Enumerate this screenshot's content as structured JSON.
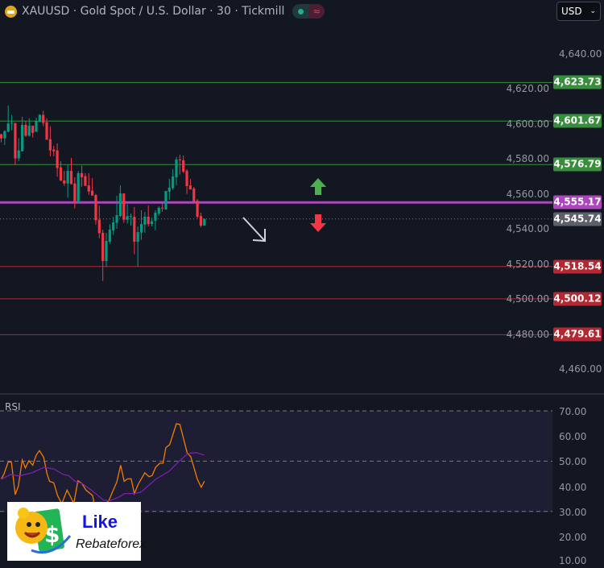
{
  "header": {
    "title": "XAUUSD · Gold Spot / U.S. Dollar · 30 · Tickmill",
    "icon": "gold-bars-icon",
    "status_icons": [
      "market-open-dot-icon",
      "delay-wave-icon"
    ]
  },
  "currency": {
    "label": "USD",
    "icon": "chevron-down-icon"
  },
  "colors": {
    "background": "#131722",
    "up": "#089981",
    "down": "#f23645",
    "resistance": "#388e3c",
    "support": "#b22833",
    "pivot": "#ab47bc",
    "last": "#5d606b",
    "rsi": "#f57c00",
    "rsi_ma": "#7e1fae"
  },
  "price_axis": {
    "ticks": [
      "4,640.00",
      "4,620.00",
      "4,600.00",
      "4,580.00",
      "4,560.00",
      "4,540.00",
      "4,520.00",
      "4,500.00",
      "4,480.00",
      "4,460.00"
    ]
  },
  "levels": [
    {
      "label": "4,623.73",
      "value": 4623.73,
      "type": "resistance"
    },
    {
      "label": "4,601.67",
      "value": 4601.67,
      "type": "resistance"
    },
    {
      "label": "4,576.79",
      "value": 4576.79,
      "type": "resistance"
    },
    {
      "label": "4,555.17",
      "value": 4555.17,
      "type": "pivot"
    },
    {
      "label": "4,545.74",
      "value": 4545.74,
      "type": "last"
    },
    {
      "label": "4,518.54",
      "value": 4518.54,
      "type": "support"
    },
    {
      "label": "4,500.12",
      "value": 4500.12,
      "type": "support"
    },
    {
      "label": "4,479.61",
      "value": 4479.61,
      "type": "support"
    }
  ],
  "annotations": {
    "up_arrow": "green-up-arrow-icon",
    "down_arrow": "red-down-arrow-icon",
    "trend_arrow": "diagonal-down-arrow-icon"
  },
  "rsi": {
    "label": "RSI",
    "ticks": [
      "70.00",
      "60.00",
      "50.00",
      "40.00",
      "30.00",
      "20.00",
      "10.00"
    ]
  },
  "logo": {
    "line1": "Like",
    "line2": "Rebateforex"
  },
  "chart_data": [
    {
      "type": "candlestick",
      "ylim": [
        4460,
        4640
      ],
      "ohlc": [
        [
          4594.1,
          4594.4,
          4589.5,
          4591.8
        ],
        [
          4591.8,
          4596.4,
          4588.0,
          4595.9
        ],
        [
          4595.6,
          4610.5,
          4595.2,
          4600.3
        ],
        [
          4600.3,
          4605.2,
          4596.4,
          4600.6
        ],
        [
          4600.6,
          4600.6,
          4576.5,
          4580.3
        ],
        [
          4580.3,
          4591.8,
          4578.8,
          4584.9
        ],
        [
          4584.4,
          4604.1,
          4584.4,
          4599.5
        ],
        [
          4599.5,
          4601.8,
          4592.6,
          4593.3
        ],
        [
          4593.3,
          4603.3,
          4592.9,
          4599.0
        ],
        [
          4599.0,
          4599.0,
          4592.3,
          4594.9
        ],
        [
          4595.5,
          4603.6,
          4595.5,
          4601.8
        ],
        [
          4601.3,
          4605.5,
          4601.0,
          4605.2
        ],
        [
          4605.2,
          4607.5,
          4598.7,
          4600.6
        ],
        [
          4601.0,
          4603.3,
          4591.0,
          4591.0
        ],
        [
          4591.3,
          4598.7,
          4581.5,
          4584.9
        ],
        [
          4585.4,
          4587.5,
          4581.5,
          4584.4
        ],
        [
          4584.9,
          4588.9,
          4569.9,
          4574.8
        ],
        [
          4575.2,
          4578.8,
          4567.6,
          4567.6
        ],
        [
          4567.7,
          4573.2,
          4564.6,
          4566.0
        ],
        [
          4566.0,
          4576.9,
          4557.9,
          4573.2
        ],
        [
          4573.2,
          4580.6,
          4565.6,
          4565.6
        ],
        [
          4566.0,
          4569.5,
          4551.7,
          4555.3
        ],
        [
          4555.3,
          4573.2,
          4555.3,
          4571.9
        ],
        [
          4571.9,
          4576.3,
          4564.2,
          4569.5
        ],
        [
          4570.2,
          4571.9,
          4564.6,
          4564.6
        ],
        [
          4564.9,
          4571.9,
          4559.6,
          4561.4
        ],
        [
          4561.9,
          4569.1,
          4559.1,
          4559.1
        ],
        [
          4559.4,
          4560.0,
          4542.5,
          4545.0
        ],
        [
          4545.3,
          4553.4,
          4534.7,
          4537.6
        ],
        [
          4537.8,
          4539.6,
          4510.3,
          4521.7
        ],
        [
          4521.7,
          4537.8,
          4518.3,
          4533.2
        ],
        [
          4532.7,
          4542.7,
          4531.5,
          4539.6
        ],
        [
          4539.2,
          4547.0,
          4536.6,
          4543.8
        ],
        [
          4543.5,
          4559.0,
          4540.1,
          4547.9
        ],
        [
          4547.4,
          4565.0,
          4546.8,
          4560.3
        ],
        [
          4560.3,
          4560.3,
          4543.5,
          4545.3
        ],
        [
          4545.3,
          4554.2,
          4543.1,
          4547.4
        ],
        [
          4547.0,
          4548.8,
          4541.9,
          4547.4
        ],
        [
          4547.0,
          4552.5,
          4525.5,
          4532.7
        ],
        [
          4532.7,
          4541.5,
          4518.6,
          4538.2
        ],
        [
          4537.9,
          4550.7,
          4533.8,
          4542.8
        ],
        [
          4542.5,
          4549.7,
          4537.9,
          4547.0
        ],
        [
          4547.0,
          4553.4,
          4541.5,
          4542.8
        ],
        [
          4542.8,
          4546.5,
          4541.5,
          4544.4
        ],
        [
          4544.7,
          4550.7,
          4539.3,
          4549.3
        ],
        [
          4548.8,
          4553.0,
          4547.6,
          4552.1
        ],
        [
          4552.2,
          4554.8,
          4549.9,
          4551.7
        ],
        [
          4551.1,
          4561.7,
          4551.1,
          4561.7
        ],
        [
          4561.3,
          4568.6,
          4556.8,
          4563.6
        ],
        [
          4563.3,
          4574.2,
          4562.3,
          4570.0
        ],
        [
          4569.5,
          4581.1,
          4565.0,
          4579.7
        ],
        [
          4579.7,
          4582.4,
          4571.1,
          4579.2
        ],
        [
          4579.2,
          4582.0,
          4571.9,
          4572.8
        ],
        [
          4573.2,
          4574.2,
          4560.0,
          4564.5
        ],
        [
          4564.9,
          4568.6,
          4562.6,
          4562.6
        ],
        [
          4563.1,
          4564.0,
          4555.7,
          4555.7
        ],
        [
          4556.2,
          4557.1,
          4546.1,
          4547.0
        ],
        [
          4547.4,
          4549.3,
          4541.0,
          4541.9
        ],
        [
          4541.9,
          4546.1,
          4541.9,
          4545.6
        ]
      ]
    },
    {
      "type": "line",
      "name": "RSI",
      "ylim": [
        10,
        70
      ],
      "bands": [
        30,
        50,
        70
      ],
      "series": [
        {
          "points": [
            [
              0,
              42.8
            ],
            [
              0.8,
              44.9
            ],
            [
              2.0,
              49.7
            ],
            [
              2.9,
              49.7
            ],
            [
              4.0,
              36.7
            ],
            [
              4.9,
              40.1
            ],
            [
              6.0,
              50.5
            ],
            [
              6.9,
              47.3
            ],
            [
              7.9,
              50.2
            ],
            [
              9.0,
              48.4
            ],
            [
              10.0,
              52.4
            ],
            [
              10.9,
              54.2
            ],
            [
              12.1,
              51.6
            ],
            [
              13.1,
              44.9
            ],
            [
              13.8,
              42.0
            ],
            [
              15.0,
              41.4
            ],
            [
              16.1,
              36.3
            ],
            [
              17.3,
              33.1
            ],
            [
              18.8,
              38.5
            ],
            [
              20.0,
              35.3
            ],
            [
              20.7,
              33.1
            ],
            [
              21.9,
              42.2
            ],
            [
              23.0,
              41.2
            ],
            [
              24.2,
              38.5
            ],
            [
              26.1,
              36.3
            ],
            [
              26.6,
              32.6
            ],
            [
              27.6,
              29.4
            ],
            [
              28.8,
              31.5
            ],
            [
              30.7,
              34.2
            ],
            [
              31.8,
              37.9
            ],
            [
              33.0,
              41.7
            ],
            [
              34.1,
              48.4
            ],
            [
              35.1,
              42.0
            ],
            [
              36.1,
              43.0
            ],
            [
              37.1,
              43.0
            ],
            [
              38.0,
              37.1
            ],
            [
              39.1,
              40.8
            ],
            [
              41.0,
              45.4
            ],
            [
              42.2,
              43.8
            ],
            [
              43.1,
              44.3
            ],
            [
              44.1,
              47.6
            ],
            [
              45.3,
              49.2
            ],
            [
              46.2,
              49.2
            ],
            [
              47.0,
              55.4
            ],
            [
              48.1,
              56.6
            ],
            [
              50.0,
              64.9
            ],
            [
              51.0,
              64.6
            ],
            [
              53.1,
              53.2
            ],
            [
              54.1,
              51.8
            ],
            [
              56.0,
              42.8
            ],
            [
              57.1,
              39.6
            ],
            [
              58.0,
              42.0
            ]
          ]
        },
        {
          "points": [
            [
              0,
              42.8
            ],
            [
              2.7,
              44.7
            ],
            [
              5.0,
              44.1
            ],
            [
              8.9,
              45.4
            ],
            [
              12.3,
              47.6
            ],
            [
              15.0,
              46.9
            ],
            [
              17.7,
              44.7
            ],
            [
              19.2,
              44.3
            ],
            [
              21.1,
              42.0
            ],
            [
              23.0,
              41.2
            ],
            [
              25.7,
              38.5
            ],
            [
              29.2,
              34.5
            ],
            [
              30.7,
              34.2
            ],
            [
              33.0,
              35.3
            ],
            [
              35.3,
              37.1
            ],
            [
              38.0,
              37.1
            ],
            [
              39.9,
              37.7
            ],
            [
              44.1,
              42.8
            ],
            [
              47.9,
              46.0
            ],
            [
              50.6,
              49.7
            ],
            [
              53.3,
              53.1
            ],
            [
              55.6,
              53.4
            ],
            [
              58.0,
              52.4
            ]
          ]
        }
      ]
    }
  ]
}
